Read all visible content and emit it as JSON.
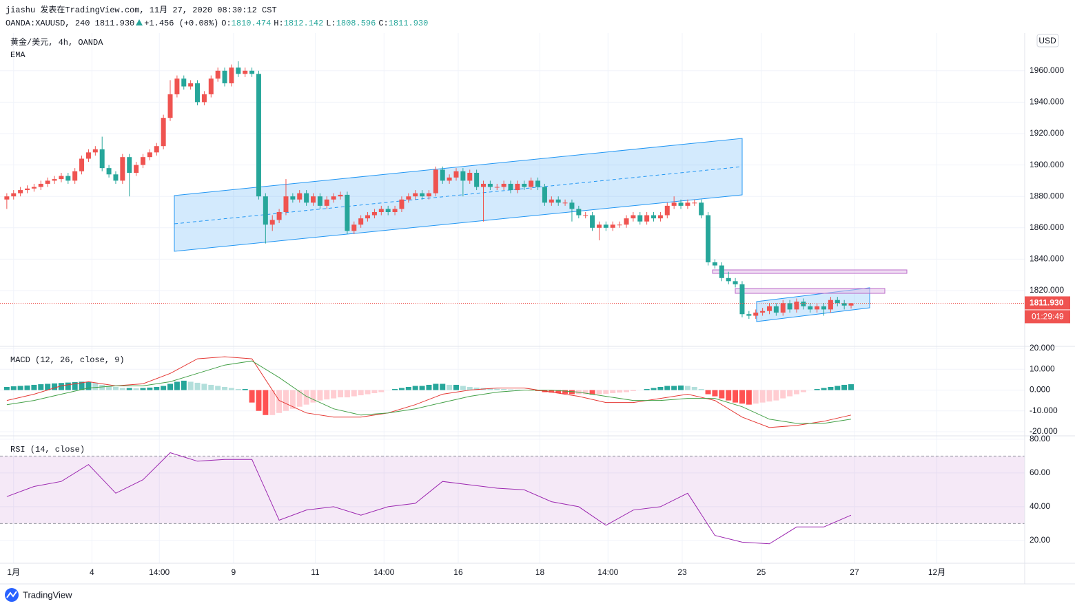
{
  "header": {
    "author": "jiashu 发表在TradingView.com, 11月 27, 2020 08:30:12 CST",
    "symbol": "OANDA:XAUUSD, 240",
    "price": "1811.930",
    "change": "+1.456 (+0.08%)",
    "ohlc": [
      {
        "label": "O:",
        "value": "1810.474"
      },
      {
        "label": "H:",
        "value": "1812.142"
      },
      {
        "label": "L:",
        "value": "1808.596"
      },
      {
        "label": "C:",
        "value": "1811.930"
      }
    ]
  },
  "chart_data": [
    {
      "type": "candlestick",
      "title": "黄金/美元, 4h, OANDA",
      "indicator": "EMA",
      "currency": "USD",
      "up_color": "#ef5350",
      "down_color": "#26a69a",
      "open": [
        1878,
        1880,
        1882,
        1884,
        1885,
        1886,
        1888,
        1890,
        1891,
        1893,
        1890,
        1896,
        1904,
        1908,
        1910,
        1898,
        1894,
        1890,
        1905,
        1895,
        1900,
        1905,
        1908,
        1912,
        1930,
        1945,
        1955,
        1950,
        1952,
        1940,
        1945,
        1955,
        1960,
        1952,
        1962,
        1958,
        1960,
        1958,
        1880,
        1862,
        1865,
        1870,
        1880,
        1878,
        1882,
        1876,
        1880,
        1874,
        1878,
        1880,
        1881,
        1858,
        1862,
        1866,
        1868,
        1870,
        1872,
        1870,
        1872,
        1878,
        1880,
        1882,
        1880,
        1882,
        1897,
        1890,
        1892,
        1896,
        1890,
        1895,
        1886,
        1888,
        1886,
        1886,
        1888,
        1884,
        1888,
        1886,
        1890,
        1886,
        1876,
        1878,
        1876,
        1876,
        1872,
        1868,
        1868,
        1860,
        1862,
        1860,
        1862,
        1862,
        1866,
        1868,
        1864,
        1868,
        1866,
        1868,
        1874,
        1876,
        1874,
        1876,
        1876,
        1868,
        1838,
        1836,
        1828,
        1826,
        1824,
        1805,
        1804,
        1806,
        1807,
        1810,
        1806,
        1812,
        1808,
        1813,
        1810,
        1808,
        1810,
        1808,
        1814,
        1812,
        1810.474
      ],
      "high": [
        1882,
        1884,
        1886,
        1887,
        1888,
        1890,
        1892,
        1893,
        1895,
        1895,
        1898,
        1906,
        1910,
        1912,
        1918,
        1900,
        1896,
        1907,
        1907,
        1902,
        1907,
        1910,
        1914,
        1932,
        1954,
        1957,
        1957,
        1954,
        1954,
        1947,
        1957,
        1962,
        1962,
        1964,
        1966,
        1962,
        1962,
        1960,
        1882,
        1868,
        1872,
        1891,
        1882,
        1884,
        1884,
        1882,
        1882,
        1880,
        1882,
        1883,
        1883,
        1864,
        1868,
        1870,
        1872,
        1874,
        1874,
        1874,
        1880,
        1882,
        1884,
        1884,
        1884,
        1899,
        1899,
        1894,
        1898,
        1898,
        1897,
        1897,
        1890,
        1890,
        1888,
        1890,
        1890,
        1890,
        1890,
        1892,
        1892,
        1888,
        1880,
        1880,
        1878,
        1878,
        1874,
        1870,
        1870,
        1864,
        1864,
        1864,
        1864,
        1868,
        1870,
        1870,
        1870,
        1870,
        1870,
        1876,
        1880,
        1878,
        1878,
        1878,
        1878,
        1870,
        1840,
        1838,
        1832,
        1828,
        1826,
        1807,
        1808,
        1809,
        1812,
        1812,
        1814,
        1814,
        1815,
        1815,
        1812,
        1812,
        1812,
        1816,
        1816,
        1814,
        1812.142
      ],
      "low": [
        1872,
        1878,
        1880,
        1882,
        1883,
        1884,
        1886,
        1888,
        1889,
        1888,
        1888,
        1894,
        1902,
        1906,
        1896,
        1892,
        1888,
        1888,
        1880,
        1893,
        1898,
        1903,
        1906,
        1910,
        1928,
        1943,
        1948,
        1948,
        1938,
        1938,
        1943,
        1953,
        1950,
        1950,
        1956,
        1956,
        1956,
        1878,
        1850,
        1858,
        1863,
        1868,
        1876,
        1876,
        1874,
        1874,
        1872,
        1872,
        1876,
        1878,
        1856,
        1856,
        1860,
        1864,
        1866,
        1868,
        1868,
        1868,
        1870,
        1876,
        1878,
        1878,
        1878,
        1880,
        1888,
        1888,
        1890,
        1880,
        1888,
        1884,
        1864,
        1884,
        1884,
        1884,
        1882,
        1882,
        1884,
        1884,
        1884,
        1874,
        1874,
        1874,
        1874,
        1864,
        1866,
        1866,
        1858,
        1852,
        1858,
        1858,
        1860,
        1860,
        1864,
        1862,
        1862,
        1864,
        1864,
        1866,
        1872,
        1872,
        1872,
        1874,
        1866,
        1836,
        1834,
        1826,
        1824,
        1822,
        1803,
        1802,
        1802,
        1804,
        1805,
        1804,
        1804,
        1806,
        1806,
        1808,
        1806,
        1806,
        1804,
        1806,
        1810,
        1808,
        1808.596
      ],
      "close": [
        1880,
        1882,
        1884,
        1885,
        1886,
        1888,
        1890,
        1891,
        1893,
        1890,
        1896,
        1904,
        1908,
        1910,
        1898,
        1894,
        1890,
        1905,
        1895,
        1900,
        1905,
        1908,
        1912,
        1930,
        1945,
        1955,
        1950,
        1952,
        1940,
        1945,
        1955,
        1960,
        1952,
        1962,
        1958,
        1960,
        1958,
        1880,
        1862,
        1865,
        1870,
        1880,
        1878,
        1882,
        1876,
        1880,
        1874,
        1878,
        1880,
        1881,
        1858,
        1862,
        1866,
        1868,
        1870,
        1872,
        1870,
        1872,
        1878,
        1880,
        1882,
        1880,
        1882,
        1897,
        1890,
        1892,
        1896,
        1890,
        1895,
        1886,
        1888,
        1886,
        1886,
        1888,
        1884,
        1888,
        1886,
        1890,
        1886,
        1876,
        1878,
        1876,
        1876,
        1872,
        1868,
        1868,
        1860,
        1862,
        1860,
        1862,
        1862,
        1866,
        1868,
        1864,
        1868,
        1866,
        1868,
        1874,
        1876,
        1874,
        1876,
        1876,
        1868,
        1838,
        1836,
        1828,
        1826,
        1824,
        1805,
        1804,
        1806,
        1807,
        1810,
        1806,
        1812,
        1808,
        1813,
        1810,
        1808,
        1810,
        1808,
        1814,
        1812,
        1810.474,
        1811.93
      ],
      "last_price_label": "1811.930",
      "countdown": "01:29:49",
      "xlim": [
        -1,
        149.5
      ],
      "xticks": [
        {
          "value": 1,
          "label": "1月"
        },
        {
          "value": 12.5,
          "label": "4"
        },
        {
          "value": 22.4,
          "label": "14:00"
        },
        {
          "value": 33.3,
          "label": "9"
        },
        {
          "value": 45.3,
          "label": "11"
        },
        {
          "value": 55.4,
          "label": "14:00"
        },
        {
          "value": 66.3,
          "label": "16"
        },
        {
          "value": 78.3,
          "label": "18"
        },
        {
          "value": 88.3,
          "label": "14:00"
        },
        {
          "value": 99.2,
          "label": "23"
        },
        {
          "value": 110.8,
          "label": "25"
        },
        {
          "value": 124.5,
          "label": "27"
        },
        {
          "value": 136.6,
          "label": "12月"
        }
      ],
      "ylim": [
        1784.5,
        1984
      ],
      "yticks": [
        {
          "value": 1960,
          "label": "1960.000"
        },
        {
          "value": 1940,
          "label": "1940.000"
        },
        {
          "value": 1920,
          "label": "1920.000"
        },
        {
          "value": 1900,
          "label": "1900.000"
        },
        {
          "value": 1880,
          "label": "1880.000"
        },
        {
          "value": 1860,
          "label": "1860.000"
        },
        {
          "value": 1840,
          "label": "1840.000"
        },
        {
          "value": 1820,
          "label": "1820.000"
        }
      ],
      "grid": true
    },
    {
      "type": "macd",
      "title": "MACD (12, 26, close, 9)",
      "histogram": [
        1.5,
        1.8,
        2,
        2.2,
        2.5,
        2.8,
        3,
        3.2,
        3.4,
        3.6,
        3.8,
        4,
        4,
        3.5,
        2.5,
        2,
        1.5,
        1,
        1,
        0.8,
        1,
        1.2,
        1.5,
        2,
        3,
        4,
        4.5,
        4,
        3.5,
        3,
        2.5,
        2,
        1.5,
        1,
        0.5,
        0.5,
        -6,
        -10,
        -12,
        -12,
        -11,
        -10,
        -9,
        -8,
        -7,
        -6,
        -5,
        -4.5,
        -4,
        -3.5,
        -3.5,
        -3,
        -2.5,
        -2,
        -1.5,
        -1,
        0,
        0.5,
        1,
        1.5,
        2,
        2,
        2.5,
        3,
        3,
        2.5,
        2.5,
        2,
        1.5,
        1.2,
        1,
        0.8,
        0.6,
        0.5,
        0.3,
        0.2,
        0,
        -0.2,
        -0.5,
        -1,
        -1.2,
        -1.5,
        -1.8,
        -2,
        -2,
        -2,
        -2.2,
        -2,
        -1.8,
        -1.5,
        -1.2,
        -1,
        -0.5,
        0,
        0.5,
        1,
        1.5,
        2,
        2,
        2.2,
        2,
        1.5,
        0.5,
        -2,
        -3,
        -4,
        -5,
        -6,
        -6.5,
        -7,
        -6.5,
        -6,
        -5.5,
        -5,
        -4,
        -3,
        -2,
        -1,
        0,
        0.5,
        1,
        1.5,
        2,
        2.5,
        2.8
      ],
      "histogram_colors": [
        "#26a69a",
        "#b2dfdb",
        "#ff5252",
        "#ffcdd2"
      ],
      "xlim": [
        -1,
        149.5
      ],
      "x": [
        0,
        4,
        8,
        12,
        16,
        20,
        24,
        28,
        32,
        36,
        40,
        44,
        48,
        52,
        56,
        60,
        64,
        68,
        72,
        76,
        80,
        84,
        88,
        92,
        96,
        100,
        104,
        108,
        112,
        116,
        120,
        124
      ],
      "series": [
        {
          "color": "#e53935",
          "values": [
            -5,
            -2,
            2,
            4,
            2,
            3,
            8,
            15,
            16,
            15,
            -5,
            -11,
            -13,
            -13,
            -11,
            -7,
            -2,
            0,
            1,
            1,
            -1,
            -3,
            -6,
            -6,
            -4,
            -2,
            -5,
            -13,
            -18,
            -17,
            -15,
            -12
          ]
        },
        {
          "color": "#43a047",
          "values": [
            -7,
            -5,
            -2,
            1,
            2,
            2,
            4,
            8,
            12,
            14,
            6,
            -3,
            -9,
            -12,
            -11,
            -9,
            -6,
            -3,
            -1,
            0,
            0,
            -1,
            -3,
            -5,
            -5,
            -4,
            -4,
            -8,
            -14,
            -16,
            -16,
            -14
          ]
        }
      ],
      "ylim": [
        -22,
        21
      ],
      "yticks": [
        {
          "value": 20,
          "label": "20.000"
        },
        {
          "value": 10,
          "label": "10.000"
        },
        {
          "value": 0,
          "label": "0.000"
        },
        {
          "value": -10,
          "label": "-10.000"
        },
        {
          "value": -20,
          "label": "-20.000"
        }
      ]
    },
    {
      "type": "line",
      "title": "RSI (14, close)",
      "xlim": [
        -1,
        149.5
      ],
      "x": [
        0,
        4,
        8,
        12,
        16,
        20,
        24,
        28,
        32,
        36,
        40,
        44,
        48,
        52,
        56,
        60,
        64,
        68,
        72,
        76,
        80,
        84,
        88,
        92,
        96,
        100,
        104,
        108,
        112,
        116,
        120,
        124
      ],
      "series": [
        {
          "color": "#9c27b0",
          "values": [
            46,
            52,
            55,
            65,
            48,
            56,
            72,
            67,
            68,
            68,
            32,
            38,
            40,
            35,
            40,
            42,
            55,
            53,
            51,
            50,
            43,
            40,
            29,
            38,
            40,
            48,
            23,
            19,
            18,
            28,
            28,
            35
          ]
        }
      ],
      "bands": [
        30,
        70
      ],
      "band_color": "#9c27b0",
      "ylim": [
        6.5,
        82
      ],
      "yticks": [
        {
          "value": 80,
          "label": "80.00"
        },
        {
          "value": 60,
          "label": "60.00"
        },
        {
          "value": 40,
          "label": "40.00"
        },
        {
          "value": 20,
          "label": "20.00"
        }
      ]
    }
  ],
  "footer": {
    "brand": "TradingView"
  }
}
